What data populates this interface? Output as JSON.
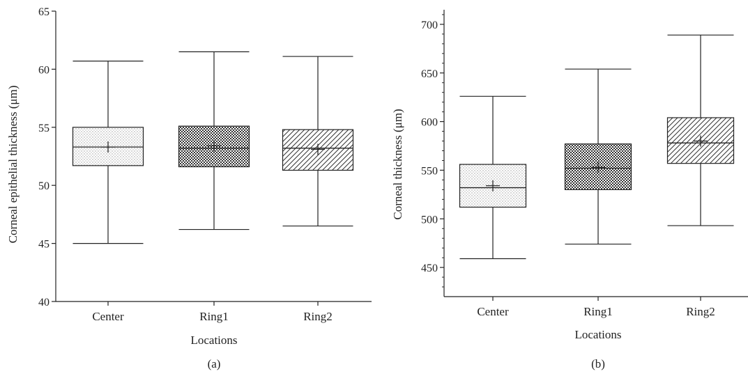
{
  "chart_data": [
    {
      "type": "box",
      "panel_label": "(a)",
      "xlabel": "Locations",
      "ylabel": "Corneal epithelial thickness (μm)",
      "ylim": [
        40,
        65
      ],
      "yticks": [
        40,
        45,
        50,
        55,
        60,
        65
      ],
      "categories": [
        "Center",
        "Ring1",
        "Ring2"
      ],
      "boxes": [
        {
          "category": "Center",
          "min": 45.0,
          "q1": 51.7,
          "median": 53.3,
          "mean": 53.3,
          "q3": 55.0,
          "max": 60.7,
          "pattern": "dots"
        },
        {
          "category": "Ring1",
          "min": 46.2,
          "q1": 51.6,
          "median": 53.2,
          "mean": 53.4,
          "q3": 55.1,
          "max": 61.5,
          "pattern": "crosshatch"
        },
        {
          "category": "Ring2",
          "min": 46.5,
          "q1": 51.3,
          "median": 53.2,
          "mean": 53.1,
          "q3": 54.8,
          "max": 61.1,
          "pattern": "diagonal"
        }
      ]
    },
    {
      "type": "box",
      "panel_label": "(b)",
      "xlabel": "Locations",
      "ylabel": "Corneal thickness (μm)",
      "ylim": [
        420,
        715
      ],
      "yticks": [
        450,
        500,
        550,
        600,
        650,
        700
      ],
      "categories": [
        "Center",
        "Ring1",
        "Ring2"
      ],
      "boxes": [
        {
          "category": "Center",
          "min": 459,
          "q1": 512,
          "median": 532,
          "mean": 534,
          "q3": 556,
          "max": 626,
          "pattern": "dots"
        },
        {
          "category": "Ring1",
          "min": 474,
          "q1": 530,
          "median": 552,
          "mean": 553,
          "q3": 577,
          "max": 654,
          "pattern": "crosshatch"
        },
        {
          "category": "Ring2",
          "min": 493,
          "q1": 557,
          "median": 578,
          "mean": 580,
          "q3": 604,
          "max": 689,
          "pattern": "diagonal"
        }
      ]
    }
  ]
}
